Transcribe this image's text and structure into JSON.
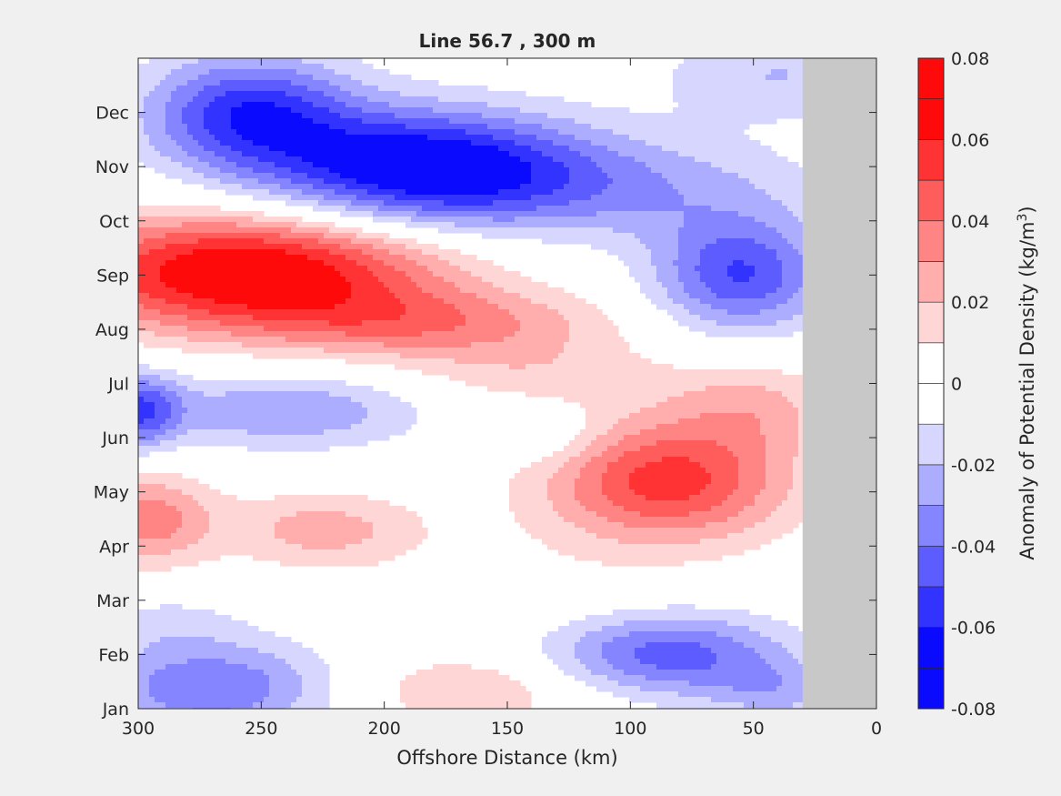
{
  "chart_data": {
    "type": "contour",
    "title": "Line 56.7 , 300 m",
    "xlabel": "Offshore Distance (km)",
    "xlim": [
      300,
      0
    ],
    "x_direction": "reversed",
    "x_ticks": [
      300,
      250,
      200,
      150,
      100,
      50,
      0
    ],
    "y_tick_labels": [
      "Jan",
      "Feb",
      "Mar",
      "Apr",
      "May",
      "Jun",
      "Jul",
      "Aug",
      "Sep",
      "Oct",
      "Nov",
      "Dec"
    ],
    "ylim_months": [
      1,
      13
    ],
    "colorbar": {
      "label": "Anomaly of Potential Density (kg/m³)",
      "label_main": "Anomaly of Potential Density (kg/m",
      "label_sup": "3",
      "label_end": ")",
      "limits": [
        -0.08,
        0.08
      ],
      "levels": [
        -0.08,
        -0.07,
        -0.06,
        -0.05,
        -0.04,
        -0.03,
        -0.02,
        -0.01,
        0,
        0.01,
        0.02,
        0.03,
        0.04,
        0.05,
        0.06,
        0.07,
        0.08
      ],
      "tick_labels": [
        "0.08",
        "0.06",
        "0.04",
        "0.02",
        "0",
        "-0.02",
        "-0.04",
        "-0.06",
        "-0.08"
      ],
      "tick_values": [
        0.08,
        0.06,
        0.04,
        0.02,
        0,
        -0.02,
        -0.04,
        -0.06,
        -0.08
      ],
      "colors_pos": [
        "#ffd6d6",
        "#ffadad",
        "#ff8585",
        "#ff5c5c",
        "#ff3333",
        "#ff0a0a"
      ],
      "colors_neg": [
        "#d6d6ff",
        "#adadff",
        "#8585ff",
        "#5c5cff",
        "#3333ff",
        "#0a0aff"
      ]
    },
    "no_data_region": {
      "x_from": 30,
      "x_to": 0,
      "color": "#c8c8c8"
    },
    "anomaly_features": [
      {
        "x": 185,
        "month": 11.0,
        "value": -0.07,
        "sx": 45,
        "sy": 0.75
      },
      {
        "x": 255,
        "month": 12.0,
        "value": -0.055,
        "sx": 30,
        "sy": 0.75
      },
      {
        "x": 105,
        "month": 10.6,
        "value": -0.025,
        "sx": 55,
        "sy": 0.7
      },
      {
        "x": 40,
        "month": 12.7,
        "value": -0.02,
        "sx": 35,
        "sy": 0.6
      },
      {
        "x": 55,
        "month": 9.0,
        "value": -0.05,
        "sx": 25,
        "sy": 0.75
      },
      {
        "x": 255,
        "month": 9.05,
        "value": 0.075,
        "sx": 55,
        "sy": 0.75
      },
      {
        "x": 180,
        "month": 8.1,
        "value": 0.03,
        "sx": 50,
        "sy": 0.45
      },
      {
        "x": 140,
        "month": 7.2,
        "value": 0.015,
        "sx": 40,
        "sy": 0.45
      },
      {
        "x": 240,
        "month": 6.5,
        "value": -0.03,
        "sx": 40,
        "sy": 0.5
      },
      {
        "x": 300,
        "month": 6.5,
        "value": -0.045,
        "sx": 12,
        "sy": 0.5
      },
      {
        "x": 133,
        "month": 6.0,
        "value": -0.012,
        "sx": 15,
        "sy": 0.4
      },
      {
        "x": 85,
        "month": 5.2,
        "value": 0.055,
        "sx": 35,
        "sy": 0.8
      },
      {
        "x": 50,
        "month": 6.6,
        "value": 0.02,
        "sx": 25,
        "sy": 0.6
      },
      {
        "x": 225,
        "month": 4.3,
        "value": 0.025,
        "sx": 28,
        "sy": 0.5
      },
      {
        "x": 295,
        "month": 4.5,
        "value": 0.035,
        "sx": 18,
        "sy": 0.6
      },
      {
        "x": 85,
        "month": 2.0,
        "value": -0.045,
        "sx": 35,
        "sy": 0.55
      },
      {
        "x": 40,
        "month": 1.3,
        "value": -0.02,
        "sx": 20,
        "sy": 0.4
      },
      {
        "x": 270,
        "month": 1.4,
        "value": -0.04,
        "sx": 35,
        "sy": 0.6
      },
      {
        "x": 165,
        "month": 1.35,
        "value": 0.02,
        "sx": 35,
        "sy": 0.45
      },
      {
        "x": 140,
        "month": 3.3,
        "value": 0.005,
        "sx": 40,
        "sy": 0.8
      },
      {
        "x": 160,
        "month": 3.5,
        "value": -0.012,
        "sx": 12,
        "sy": 0.3
      },
      {
        "x": 290,
        "month": 2.6,
        "value": -0.012,
        "sx": 25,
        "sy": 0.4
      }
    ]
  }
}
